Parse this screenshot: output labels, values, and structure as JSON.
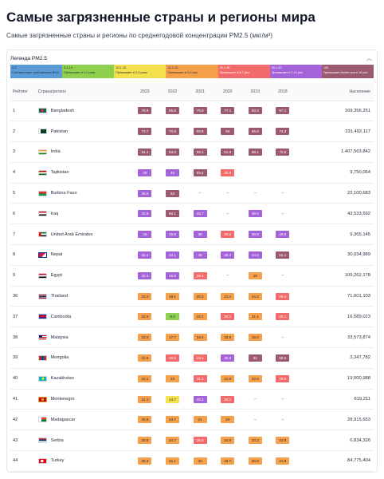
{
  "page": {
    "title": "Самые загрязненные страны и регионы мира",
    "subtitle": "Самые загрязненные страны и регионы по среднегодовой концентрации PM2.5 (мкг/м³)"
  },
  "legend": {
    "title": "Легенда PM2.5",
    "collapse_icon": "chevron-up-icon",
    "segments": [
      {
        "range": "0-5",
        "desc": "Соответствует требованиям ВОЗ",
        "color": "#5b9bd5",
        "text": "dark"
      },
      {
        "range": "5.1-10",
        "desc": "Превышает в 1-2 раза",
        "color": "#8fd14f",
        "text": "dark"
      },
      {
        "range": "10.1-15",
        "desc": "Превышает в 2-3 раза",
        "color": "#f4e04d",
        "text": "dark"
      },
      {
        "range": "15.1-25",
        "desc": "Превышает в 3-5 раз",
        "color": "#f5a14b",
        "text": "dark"
      },
      {
        "range": "25.1-35",
        "desc": "Превышает в 5-7 раз",
        "color": "#f36b6b",
        "text": "light"
      },
      {
        "range": "35.1-50",
        "desc": "Превышает в 7-10 раз",
        "color": "#a463d8",
        "text": "light"
      },
      {
        "range": ">50",
        "desc": "Превышает более чем в 10 раз",
        "color": "#9c5a6e",
        "text": "light"
      }
    ]
  },
  "table": {
    "headers": {
      "rank": "Рейтинг",
      "country": "Страна/регион",
      "years": [
        "2023",
        "2022",
        "2021",
        "2020",
        "2019",
        "2018"
      ],
      "population": "Население"
    },
    "rows": [
      {
        "rank": "1",
        "country": "Bangladesh",
        "flag": "bd",
        "values": [
          "79.9",
          "65.8",
          "76.9",
          "77.1",
          "83.3",
          "97.1"
        ],
        "population": "169,356,251"
      },
      {
        "rank": "2",
        "country": "Pakistan",
        "flag": "pk",
        "values": [
          "73.7",
          "70.9",
          "66.8",
          "59",
          "65.8",
          "74.3"
        ],
        "population": "231,402,117"
      },
      {
        "rank": "3",
        "country": "India",
        "flag": "in",
        "values": [
          "54.4",
          "53.3",
          "58.1",
          "51.9",
          "58.1",
          "72.5"
        ],
        "population": "1,407,563,842"
      },
      {
        "rank": "4",
        "country": "Tajikistan",
        "flag": "tj",
        "values": [
          "49",
          "46",
          "59.4",
          "30.9",
          "",
          ""
        ],
        "population": "9,750,064"
      },
      {
        "rank": "5",
        "country": "Burkina Faso",
        "flag": "bf",
        "values": [
          "46.6",
          "63",
          "–",
          "–",
          "–",
          "–"
        ],
        "population": "22,100,683"
      },
      {
        "rank": "6",
        "country": "Iraq",
        "flag": "iq",
        "values": [
          "43.8",
          "80.1",
          "49.7",
          "–",
          "39.6",
          "–"
        ],
        "population": "43,533,592"
      },
      {
        "rank": "7",
        "country": "United Arab Emirates",
        "flag": "ae",
        "values": [
          "43",
          "45.9",
          "36",
          "29.2",
          "38.9",
          "49.9"
        ],
        "population": "9,365,145"
      },
      {
        "rank": "8",
        "country": "Nepal",
        "flag": "np",
        "values": [
          "42.4",
          "40.1",
          "46",
          "39.2",
          "44.5",
          "54.1"
        ],
        "population": "30,034,989"
      },
      {
        "rank": "9",
        "country": "Egypt",
        "flag": "eg",
        "values": [
          "42.4",
          "46.5",
          "29.1",
          "–",
          "18",
          "–"
        ],
        "population": "109,262,178"
      },
      {
        "rank": "36",
        "country": "Thailand",
        "flag": "th",
        "values": [
          "23.3",
          "18.1",
          "20.2",
          "21.4",
          "24.3",
          "26.4"
        ],
        "population": "71,601,103"
      },
      {
        "rank": "37",
        "country": "Cambodia",
        "flag": "kh",
        "values": [
          "22.8",
          "8.3",
          "16.2",
          "26.1",
          "21.1",
          "26.1"
        ],
        "population": "16,589,023"
      },
      {
        "rank": "38",
        "country": "Malaysia",
        "flag": "my",
        "values": [
          "22.5",
          "17.7",
          "18.4",
          "15.9",
          "19.4",
          "–"
        ],
        "population": "33,573,874"
      },
      {
        "rank": "39",
        "country": "Mongolia",
        "flag": "mn",
        "values": [
          "22.5",
          "29.5",
          "33.1",
          "46.6",
          "62",
          "58.5"
        ],
        "population": "3,347,782"
      },
      {
        "rank": "40",
        "country": "Kazakhstan",
        "flag": "kz",
        "values": [
          "22.2",
          "23",
          "31.1",
          "21.9",
          "23.6",
          "29.8"
        ],
        "population": "19,000,988"
      },
      {
        "rank": "41",
        "country": "Montenegro",
        "flag": "me",
        "values": [
          "21.3",
          "14.7",
          "35.2",
          "26.1",
          "–",
          "–"
        ],
        "population": "619,211"
      },
      {
        "rank": "42",
        "country": "Madagascar",
        "flag": "mg",
        "values": [
          "20.8",
          "23.7",
          "21",
          "20",
          "–",
          "–"
        ],
        "population": "28,915,653"
      },
      {
        "rank": "43",
        "country": "Serbia",
        "flag": "rs",
        "values": [
          "20.5",
          "24.7",
          "25.5",
          "24.9",
          "23.3",
          "23.9"
        ],
        "population": "6,834,326"
      },
      {
        "rank": "44",
        "country": "Turkey",
        "flag": "tr",
        "values": [
          "20.3",
          "21.1",
          "20",
          "18.7",
          "20.6",
          "21.9"
        ],
        "population": "84,775,404"
      }
    ]
  }
}
